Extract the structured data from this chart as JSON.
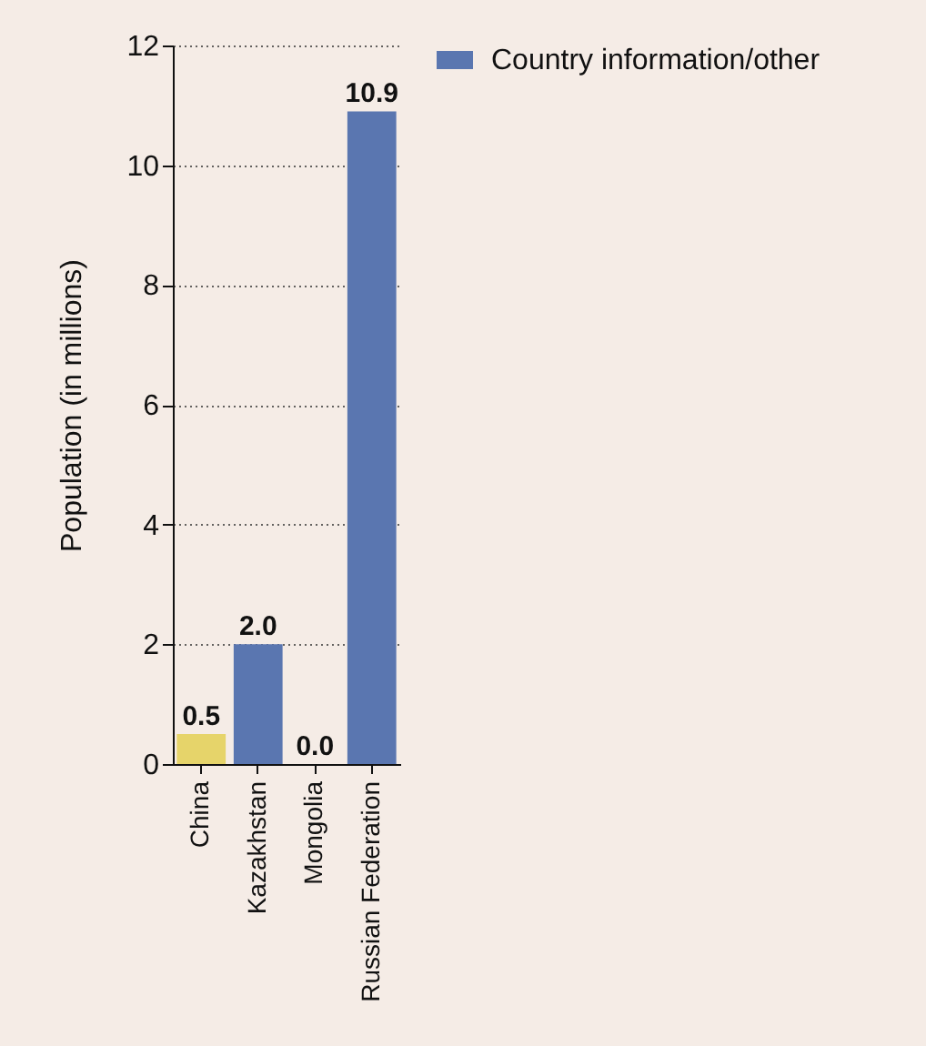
{
  "chart_data": {
    "type": "bar",
    "ylabel": "Population (in millions)",
    "categories": [
      "China",
      "Kazakhstan",
      "Mongolia",
      "Russian Federation"
    ],
    "series": [
      {
        "name": "Country information/other",
        "color": "#5a76b0",
        "values": [
          null,
          2.0,
          0.0,
          10.9
        ],
        "value_labels": [
          null,
          "2.0",
          "0.0",
          "10.9"
        ]
      },
      {
        "color": "#e6d46a",
        "values": [
          0.5,
          null,
          null,
          null
        ],
        "value_labels": [
          "0.5",
          null,
          null,
          null
        ]
      }
    ],
    "ylim": [
      0,
      12
    ],
    "yticks": [
      0,
      2,
      4,
      6,
      8,
      10,
      12
    ],
    "grid": "y",
    "line_style": "dotted",
    "legend": "top right"
  }
}
